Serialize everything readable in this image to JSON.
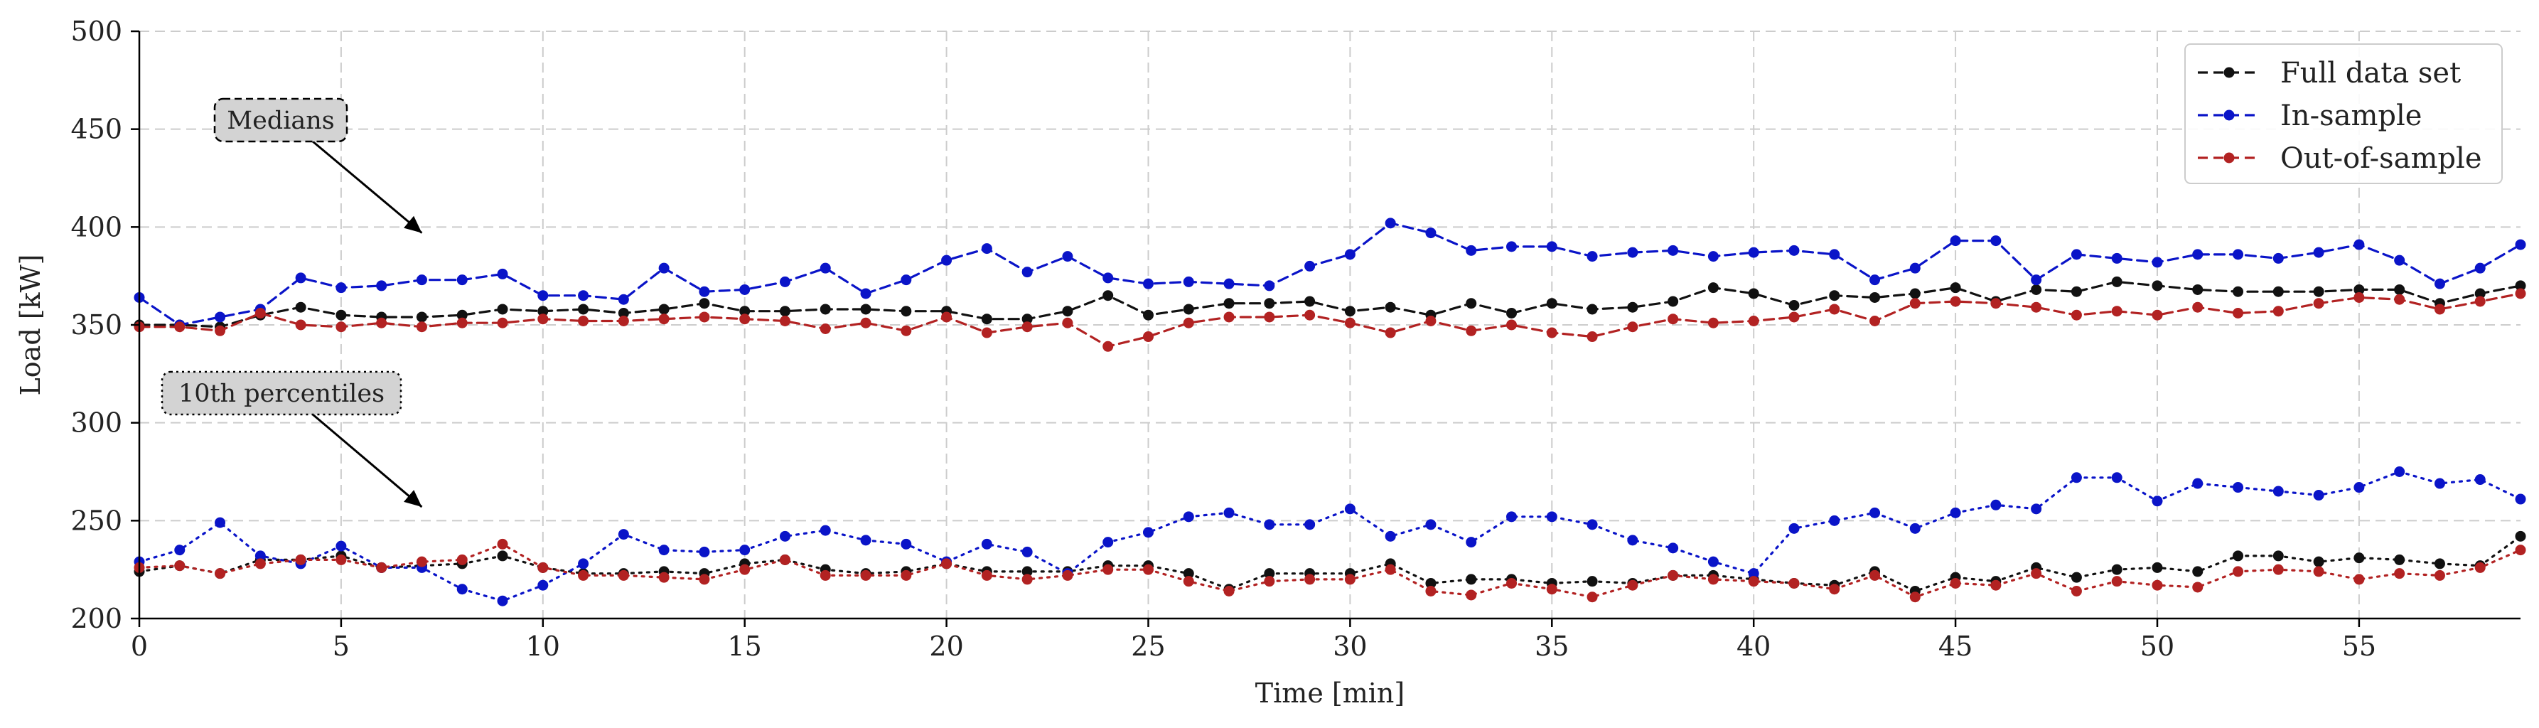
{
  "chart_data": {
    "type": "line",
    "xlabel": "Time [min]",
    "ylabel": "Load [kW]",
    "xlim": [
      0,
      59
    ],
    "ylim": [
      200,
      500
    ],
    "xticks": [
      0,
      5,
      10,
      15,
      20,
      25,
      30,
      35,
      40,
      45,
      50,
      55
    ],
    "yticks": [
      200,
      250,
      300,
      350,
      400,
      450,
      500
    ],
    "grid": true,
    "legend_position": "top-right",
    "legend": [
      {
        "name": "Full data set",
        "color": "#111111"
      },
      {
        "name": "In-sample",
        "color": "#0a14c8"
      },
      {
        "name": "Out-of-sample",
        "color": "#b22222"
      }
    ],
    "annotations": [
      {
        "text": "Medians",
        "style": "dashed",
        "arrow_to": [
          7,
          397
        ]
      },
      {
        "text": "10th percentiles",
        "style": "dotted",
        "arrow_to": [
          7,
          257
        ]
      }
    ],
    "series": [
      {
        "group": "median",
        "legend_index": 0,
        "color": "#111111",
        "style": "dashed",
        "values": [
          350,
          350,
          349,
          355,
          359,
          355,
          354,
          354,
          355,
          358,
          357,
          358,
          356,
          358,
          361,
          357,
          357,
          358,
          358,
          357,
          357,
          353,
          353,
          357,
          365,
          355,
          358,
          361,
          361,
          362,
          357,
          359,
          355,
          361,
          356,
          361,
          358,
          359,
          362,
          369,
          366,
          360,
          365,
          364,
          366,
          369,
          362,
          368,
          367,
          372,
          370,
          368,
          367,
          367,
          367,
          368,
          368,
          361,
          366,
          370
        ]
      },
      {
        "group": "median",
        "legend_index": 1,
        "color": "#0a14c8",
        "style": "dashed",
        "values": [
          364,
          350,
          354,
          358,
          374,
          369,
          370,
          373,
          373,
          376,
          365,
          365,
          363,
          379,
          367,
          368,
          372,
          379,
          366,
          373,
          383,
          389,
          377,
          385,
          374,
          371,
          372,
          371,
          370,
          380,
          386,
          402,
          397,
          388,
          390,
          390,
          385,
          387,
          388,
          385,
          387,
          388,
          386,
          373,
          379,
          393,
          393,
          373,
          386,
          384,
          382,
          386,
          386,
          384,
          387,
          391,
          383,
          371,
          379,
          391
        ]
      },
      {
        "group": "median",
        "legend_index": 2,
        "color": "#b22222",
        "style": "dashed",
        "values": [
          349,
          349,
          347,
          356,
          350,
          349,
          351,
          349,
          351,
          351,
          353,
          352,
          352,
          353,
          354,
          353,
          352,
          348,
          351,
          347,
          354,
          346,
          349,
          351,
          339,
          344,
          351,
          354,
          354,
          355,
          351,
          346,
          352,
          347,
          350,
          346,
          344,
          349,
          353,
          351,
          352,
          354,
          358,
          352,
          361,
          362,
          361,
          359,
          355,
          357,
          355,
          359,
          356,
          357,
          361,
          364,
          363,
          358,
          362,
          366
        ]
      },
      {
        "group": "p10",
        "legend_index": 0,
        "color": "#111111",
        "style": "dotted",
        "values": [
          224,
          227,
          223,
          230,
          230,
          232,
          226,
          227,
          228,
          232,
          226,
          223,
          223,
          224,
          223,
          228,
          230,
          225,
          223,
          224,
          228,
          224,
          224,
          224,
          227,
          227,
          223,
          215,
          223,
          223,
          223,
          228,
          218,
          220,
          220,
          218,
          219,
          218,
          222,
          222,
          220,
          218,
          217,
          224,
          214,
          221,
          219,
          226,
          221,
          225,
          226,
          224,
          232,
          232,
          229,
          231,
          230,
          228,
          227,
          242
        ]
      },
      {
        "group": "p10",
        "legend_index": 1,
        "color": "#0a14c8",
        "style": "dotted",
        "values": [
          229,
          235,
          249,
          232,
          228,
          237,
          226,
          226,
          215,
          209,
          217,
          228,
          243,
          235,
          234,
          235,
          242,
          245,
          240,
          238,
          229,
          238,
          234,
          223,
          239,
          244,
          252,
          254,
          248,
          248,
          256,
          242,
          248,
          239,
          252,
          252,
          248,
          240,
          236,
          229,
          223,
          246,
          250,
          254,
          246,
          254,
          258,
          256,
          272,
          272,
          260,
          269,
          267,
          265,
          263,
          267,
          275,
          269,
          271,
          261
        ]
      },
      {
        "group": "p10",
        "legend_index": 2,
        "color": "#b22222",
        "style": "dotted",
        "values": [
          226,
          227,
          223,
          228,
          230,
          230,
          226,
          229,
          230,
          238,
          226,
          222,
          222,
          221,
          220,
          225,
          230,
          222,
          222,
          222,
          228,
          222,
          220,
          222,
          225,
          225,
          219,
          214,
          219,
          220,
          220,
          225,
          214,
          212,
          218,
          215,
          211,
          217,
          222,
          220,
          219,
          218,
          215,
          222,
          211,
          218,
          217,
          223,
          214,
          219,
          217,
          216,
          224,
          225,
          224,
          220,
          223,
          222,
          226,
          235
        ]
      }
    ]
  }
}
